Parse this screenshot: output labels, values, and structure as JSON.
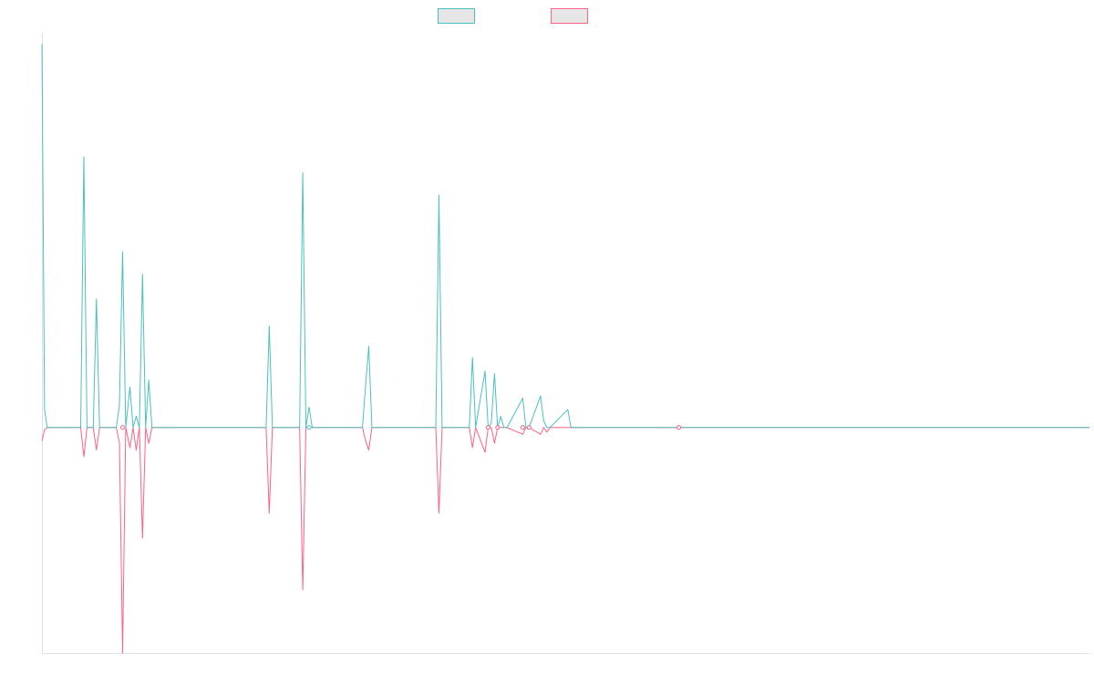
{
  "chart_data": {
    "type": "line",
    "title": "",
    "xlabel": "",
    "ylabel": "",
    "grid": false,
    "legend_position": "top-center",
    "ylim": [
      -1,
      1.75
    ],
    "xlim": [
      0,
      100
    ],
    "x": [
      0,
      0.25,
      0.5,
      3.7,
      4.0,
      4.3,
      4.9,
      5.2,
      5.5,
      7.1,
      7.4,
      7.7,
      8.0,
      8.4,
      8.7,
      9.0,
      9.3,
      9.6,
      9.9,
      10.2,
      10.5,
      10.8,
      11.1,
      21.4,
      21.7,
      22.0,
      24.6,
      24.9,
      25.2,
      25.5,
      25.8,
      30.6,
      30.9,
      31.2,
      31.5,
      31.8,
      37.6,
      37.9,
      38.2,
      40.8,
      41.1,
      41.4,
      42.3,
      42.6,
      42.9,
      43.2,
      43.5,
      43.8,
      44.1,
      44.4,
      45.9,
      46.2,
      46.5,
      47.6,
      47.9,
      48.2,
      48.5,
      50.2,
      50.5,
      60.8
    ],
    "series": [
      {
        "color": "#4bc0c0",
        "values": [
          1.7,
          0.08,
          0,
          0,
          1.2,
          0,
          0,
          0.57,
          0,
          0,
          0.1,
          0.78,
          0,
          0.18,
          0,
          0.05,
          0,
          0.68,
          0,
          0.21,
          0,
          0,
          0,
          0,
          0.45,
          0,
          0,
          1.13,
          0,
          0.09,
          0,
          0,
          0.19,
          0.36,
          0,
          0,
          0,
          1.03,
          0,
          0,
          0.31,
          0,
          0.25,
          0,
          0.02,
          0.24,
          0,
          0.05,
          0,
          0,
          0.13,
          0,
          0,
          0.14,
          0.03,
          0,
          0,
          0.08,
          0,
          0
        ],
        "markers": [
          25.5,
          42.6,
          43.5,
          45.9,
          46.5,
          60.8
        ]
      },
      {
        "color": "#ff6384",
        "values": [
          -0.06,
          -0.01,
          0,
          0,
          -0.13,
          0,
          0,
          -0.1,
          0,
          0,
          -0.07,
          -1.0,
          0,
          -0.09,
          0,
          -0.1,
          0,
          -0.49,
          0,
          -0.07,
          0,
          0,
          0,
          0,
          -0.38,
          0,
          0,
          -0.72,
          0,
          0,
          0,
          0,
          -0.06,
          -0.1,
          0,
          0,
          0,
          -0.38,
          0,
          0,
          -0.09,
          0,
          -0.11,
          0,
          0,
          -0.07,
          0,
          0,
          0,
          0,
          -0.03,
          0,
          0,
          -0.03,
          0,
          -0.02,
          0,
          0,
          0,
          0
        ],
        "markers": [
          7.7,
          42.6,
          43.5,
          45.9,
          46.5,
          60.8
        ]
      }
    ]
  }
}
